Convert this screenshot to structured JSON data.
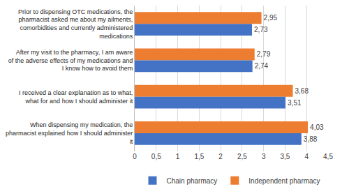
{
  "chart_data": {
    "type": "bar",
    "orientation": "horizontal",
    "categories": [
      "Prior to dispensing OTC medications, the pharmacist asked me about my ailments, comorbidities and currently administered medications",
      "After my visit to the pharmacy, I am aware of the adverse effects of my medications and I know how to avoid them",
      "I received a clear explanation as to what, what for and how I should administer it",
      "When dispensing my medication, the pharmacist explained how I should administer it"
    ],
    "series": [
      {
        "name": "Independent pharmacy",
        "color": "#ed7d31",
        "values": [
          2.95,
          2.79,
          3.68,
          4.03
        ],
        "value_labels": [
          "2,95",
          "2,79",
          "3,68",
          "4,03"
        ]
      },
      {
        "name": "Chain pharmacy",
        "color": "#4472c4",
        "values": [
          2.73,
          2.74,
          3.51,
          3.88
        ],
        "value_labels": [
          "2,73",
          "2,74",
          "3,51",
          "3,88"
        ]
      }
    ],
    "xlim": [
      0,
      4.5
    ],
    "xticks": [
      0,
      {
        "value": 0.5,
        "label": "0,5"
      },
      1,
      {
        "value": 1.5,
        "label": "1,5"
      },
      2,
      {
        "value": 2.5,
        "label": "2,5"
      },
      3,
      {
        "value": 3.5,
        "label": "3,5"
      },
      4,
      {
        "value": 4.5,
        "label": "4,5"
      }
    ],
    "grid": true,
    "legend": "bottom",
    "data_labels": true
  }
}
